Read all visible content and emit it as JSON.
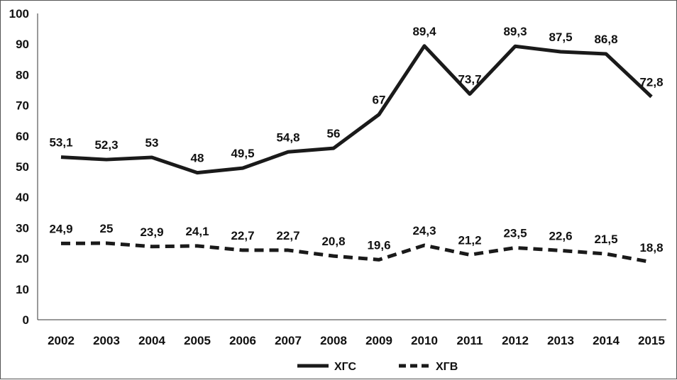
{
  "chart_data": {
    "type": "line",
    "x": [
      "2002",
      "2003",
      "2004",
      "2005",
      "2006",
      "2007",
      "2008",
      "2009",
      "2010",
      "2011",
      "2012",
      "2013",
      "2014",
      "2015"
    ],
    "ylim": [
      0,
      100
    ],
    "yticks": [
      0,
      10,
      20,
      30,
      40,
      50,
      60,
      70,
      80,
      90,
      100
    ],
    "grid": false,
    "legend_position": "bottom",
    "series": [
      {
        "name": "ХГС",
        "style": "solid",
        "color": "#1a1a1a",
        "values": [
          53.1,
          52.3,
          53,
          48,
          49.5,
          54.8,
          56,
          67,
          89.4,
          73.7,
          89.3,
          87.5,
          86.8,
          72.8
        ],
        "labels": [
          "53,1",
          "52,3",
          "53",
          "48",
          "49,5",
          "54,8",
          "56",
          "67",
          "89,4",
          "73,7",
          "89,3",
          "87,5",
          "86,8",
          "72,8"
        ]
      },
      {
        "name": "ХГВ",
        "style": "dashed",
        "color": "#1a1a1a",
        "values": [
          24.9,
          25,
          23.9,
          24.1,
          22.7,
          22.7,
          20.8,
          19.6,
          24.3,
          21.2,
          23.5,
          22.6,
          21.5,
          18.8
        ],
        "labels": [
          "24,9",
          "25",
          "23,9",
          "24,1",
          "22,7",
          "22,7",
          "20,8",
          "19,6",
          "24,3",
          "21,2",
          "23,5",
          "22,6",
          "21,5",
          "18,8"
        ]
      }
    ]
  }
}
